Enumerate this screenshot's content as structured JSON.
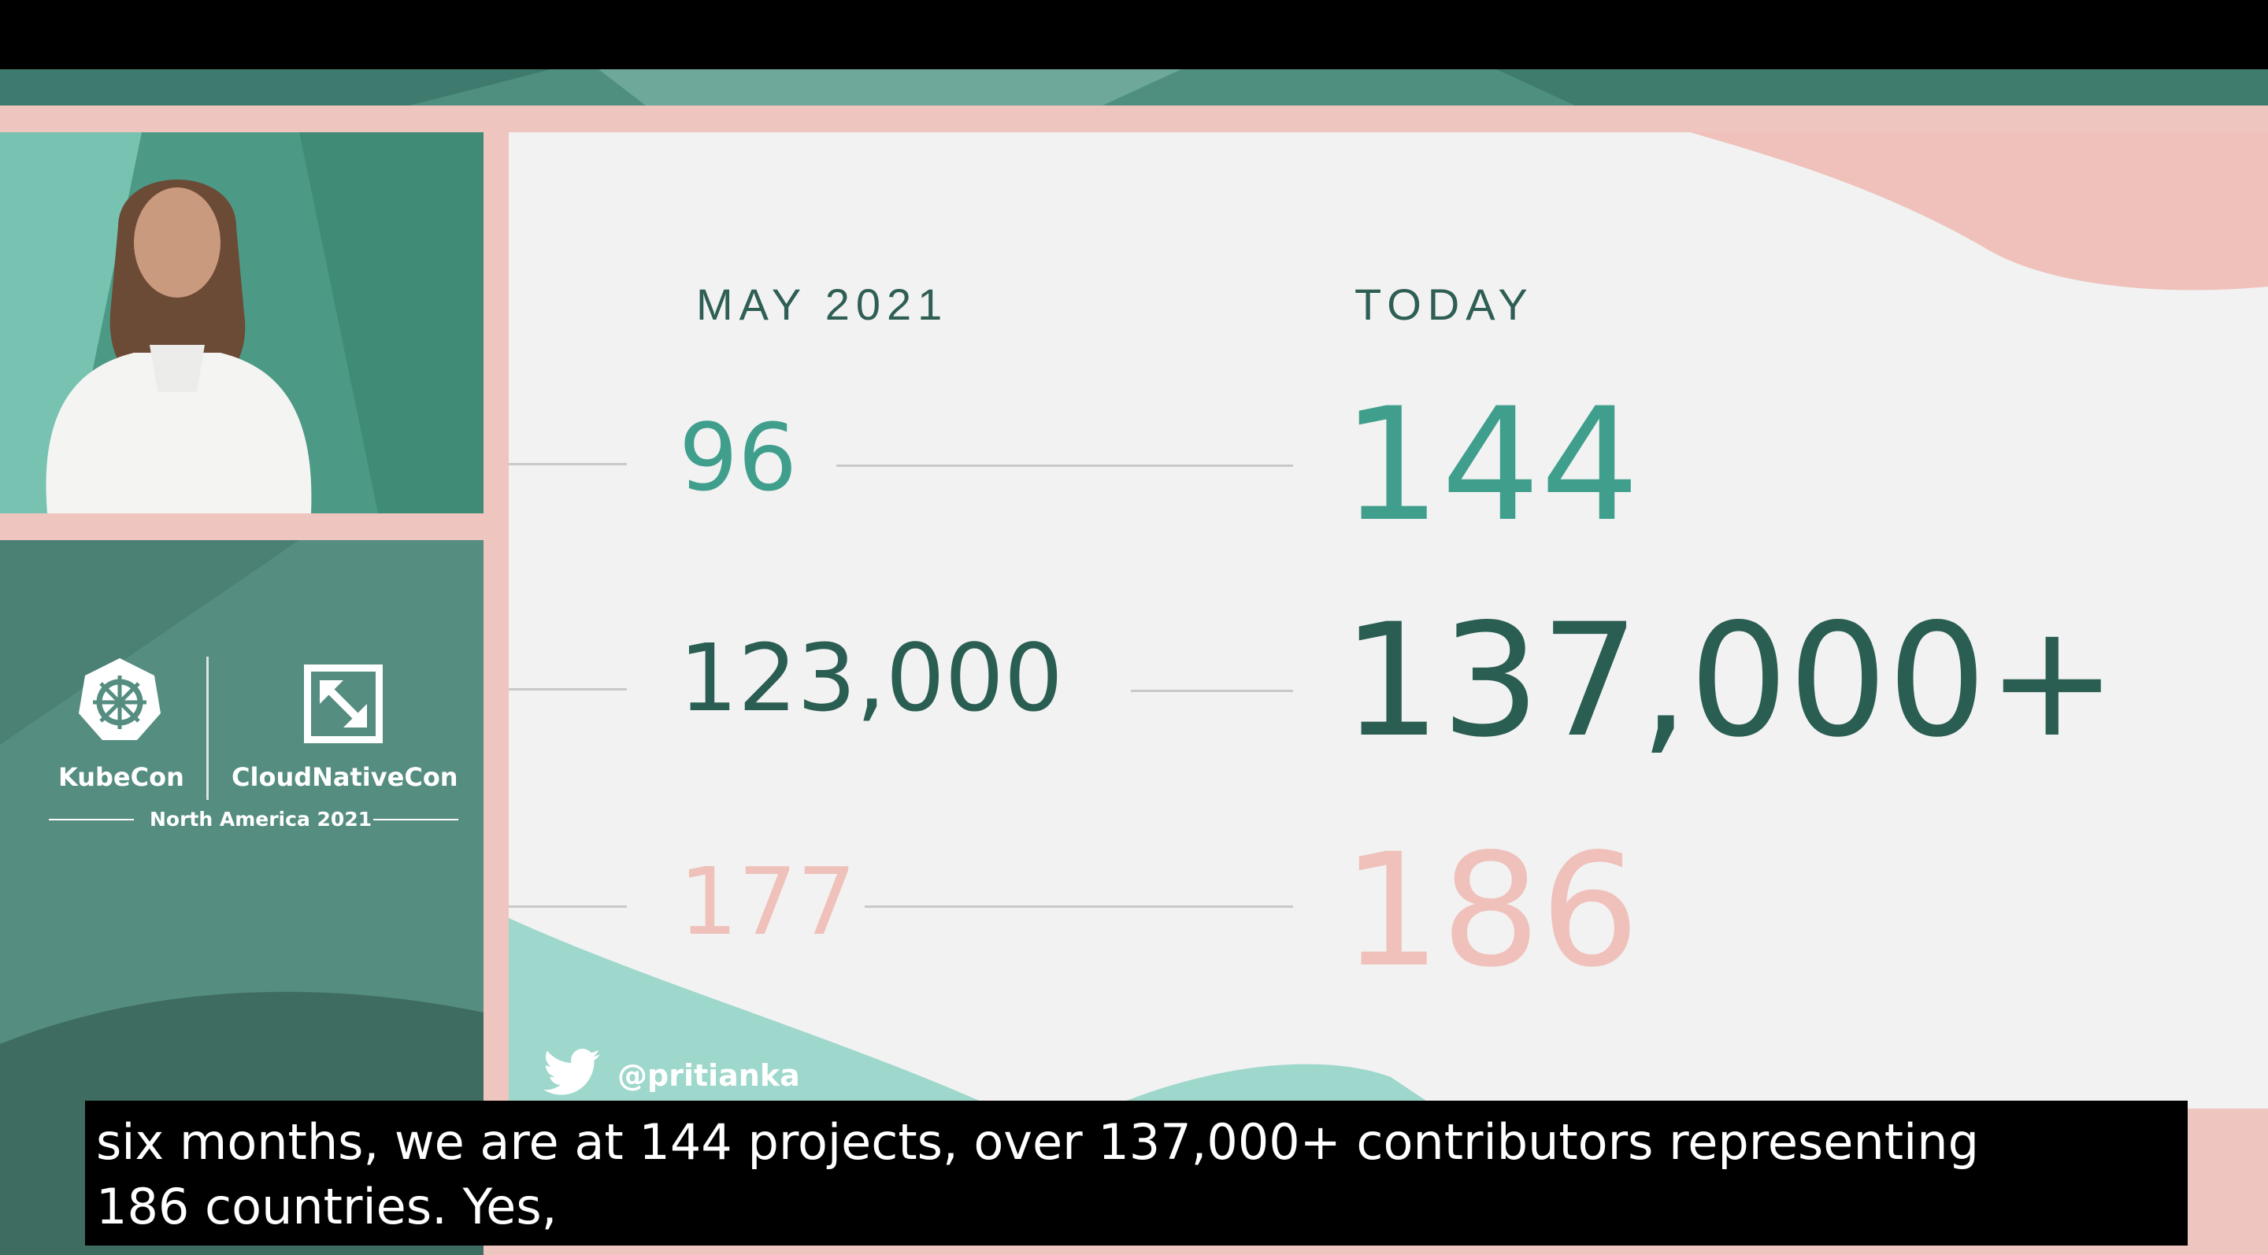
{
  "slide": {
    "heading_left": "MAY 2021",
    "heading_right": "TODAY",
    "rows": [
      {
        "then": "96",
        "now": "144"
      },
      {
        "then": "123,000",
        "now": "137,000+"
      },
      {
        "then": "177",
        "now": "186"
      }
    ],
    "twitter_handle": "@pritianka"
  },
  "branding": {
    "kubecon": "KubeCon",
    "cloudnativecon": "CloudNativeCon",
    "event": "North America 2021"
  },
  "captions": {
    "line1": "six months, we are at 144 projects, over 137,000+ contributors representing",
    "line2": "186 countries.  Yes,"
  },
  "colors": {
    "teal": "#3f9f8c",
    "dark_green": "#2b5e52",
    "pink": "#efc1ba"
  }
}
